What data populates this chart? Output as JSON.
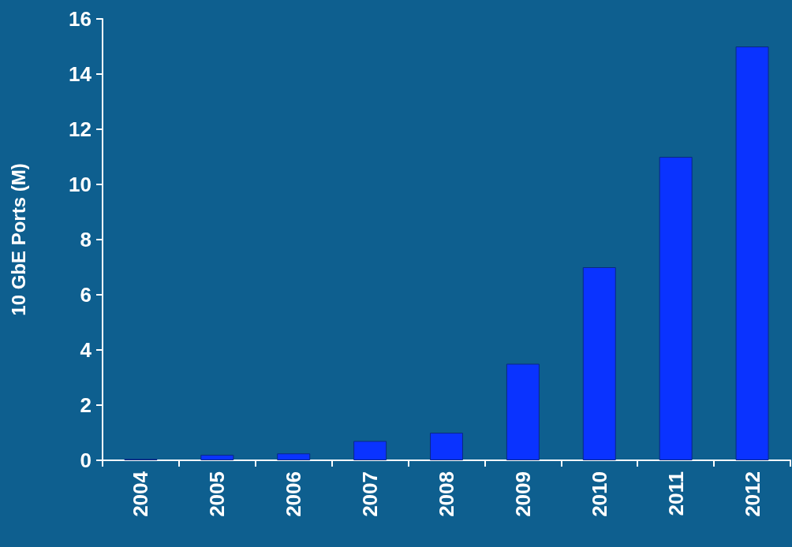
{
  "chart_data": {
    "type": "bar",
    "ylabel": "10 GbE Ports (M)",
    "categories": [
      "2004",
      "2005",
      "2006",
      "2007",
      "2008",
      "2009",
      "2010",
      "2011",
      "2012"
    ],
    "values": [
      0.05,
      0.2,
      0.25,
      0.7,
      1.0,
      3.5,
      7.0,
      11.0,
      15.0
    ],
    "color": "#0a33ff",
    "ylim": [
      0,
      16
    ],
    "yticks": [
      0,
      2,
      4,
      6,
      8,
      10,
      12,
      14,
      16
    ],
    "grid": false
  }
}
